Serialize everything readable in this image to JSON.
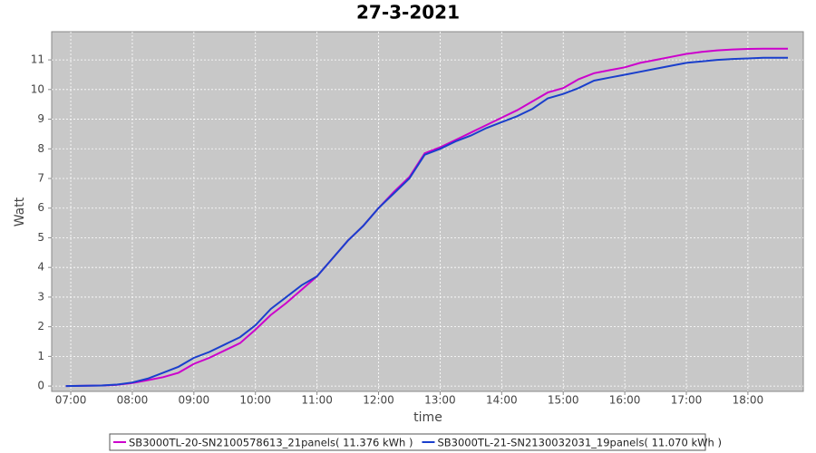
{
  "chart_data": {
    "type": "line",
    "title": "27-3-2021",
    "x_label": "time",
    "y_label": "Watt",
    "x": [
      6.92,
      7.25,
      7.5,
      7.75,
      8.0,
      8.25,
      8.5,
      8.75,
      9.0,
      9.25,
      9.5,
      9.75,
      10.0,
      10.25,
      10.5,
      10.75,
      11.0,
      11.25,
      11.5,
      11.75,
      12.0,
      12.25,
      12.5,
      12.75,
      13.0,
      13.25,
      13.5,
      13.75,
      14.0,
      14.25,
      14.5,
      14.75,
      15.0,
      15.25,
      15.5,
      15.75,
      16.0,
      16.25,
      16.5,
      16.75,
      17.0,
      17.25,
      17.5,
      17.75,
      18.0,
      18.25,
      18.5,
      18.65
    ],
    "series": [
      {
        "name": "SB3000TL-20-SN2100578613_21panels( 11.376 kWh )",
        "color": "#cc00cc",
        "values": [
          0,
          0.01,
          0.02,
          0.04,
          0.1,
          0.2,
          0.3,
          0.45,
          0.75,
          0.95,
          1.2,
          1.45,
          1.9,
          2.4,
          2.8,
          3.25,
          3.7,
          4.3,
          4.9,
          5.4,
          6.0,
          6.55,
          7.05,
          7.85,
          8.05,
          8.3,
          8.55,
          8.8,
          9.05,
          9.3,
          9.6,
          9.9,
          10.05,
          10.35,
          10.55,
          10.65,
          10.75,
          10.9,
          11.0,
          11.1,
          11.2,
          11.27,
          11.32,
          11.35,
          11.37,
          11.38,
          11.38,
          11.38
        ]
      },
      {
        "name": "SB3000TL-21-SN2130032031_19panels( 11.070 kWh )",
        "color": "#1a3fcc",
        "values": [
          0,
          0.01,
          0.02,
          0.05,
          0.12,
          0.25,
          0.45,
          0.65,
          0.95,
          1.15,
          1.4,
          1.65,
          2.05,
          2.6,
          3.0,
          3.4,
          3.7,
          4.3,
          4.9,
          5.4,
          6.0,
          6.5,
          7.0,
          7.8,
          8.0,
          8.25,
          8.45,
          8.7,
          8.9,
          9.1,
          9.35,
          9.7,
          9.85,
          10.05,
          10.3,
          10.4,
          10.5,
          10.6,
          10.7,
          10.8,
          10.9,
          10.95,
          11.0,
          11.03,
          11.05,
          11.07,
          11.07,
          11.07
        ]
      }
    ],
    "xlim": [
      6.69,
      18.9
    ],
    "xticks": [
      {
        "value": 7,
        "label": "07:00"
      },
      {
        "value": 8,
        "label": "08:00"
      },
      {
        "value": 9,
        "label": "09:00"
      },
      {
        "value": 10,
        "label": "10:00"
      },
      {
        "value": 11,
        "label": "11:00"
      },
      {
        "value": 12,
        "label": "12:00"
      },
      {
        "value": 13,
        "label": "13:00"
      },
      {
        "value": 14,
        "label": "14:00"
      },
      {
        "value": 15,
        "label": "15:00"
      },
      {
        "value": 16,
        "label": "16:00"
      },
      {
        "value": 17,
        "label": "17:00"
      },
      {
        "value": 18,
        "label": "18:00"
      }
    ],
    "ylim": [
      -0.18,
      11.95
    ],
    "yticks": [
      0,
      1,
      2,
      3,
      4,
      5,
      6,
      7,
      8,
      9,
      10,
      11
    ],
    "grid": true
  }
}
